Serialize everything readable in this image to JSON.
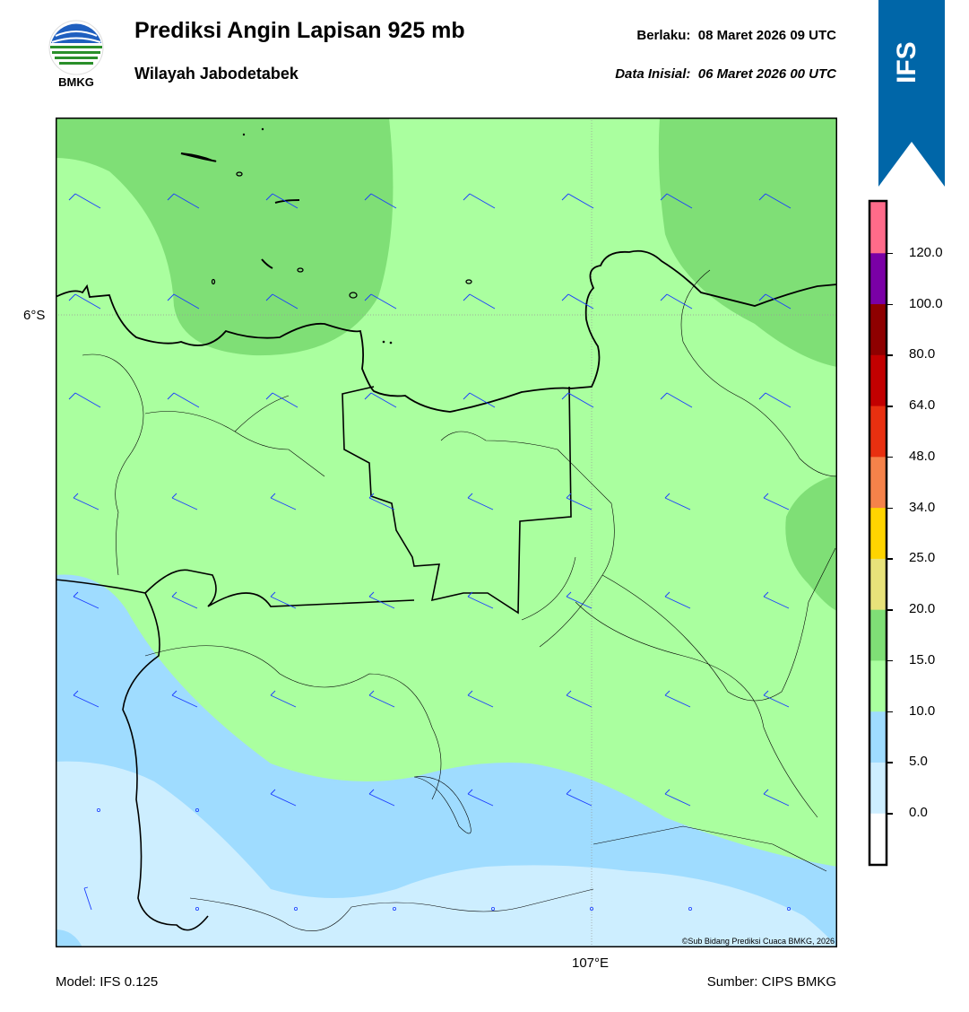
{
  "header": {
    "title": "Prediksi Angin Lapisan 925 mb",
    "subtitle": "Wilayah Jabodetabek",
    "valid_label": "Berlaku:",
    "valid_time": "08 Maret 2026 09 UTC",
    "initial_label": "Data Inisial:",
    "initial_time": "06 Maret 2026 00 UTC"
  },
  "logo": {
    "text": "BMKG"
  },
  "badge": {
    "text": "IFS",
    "color": "#0066a8"
  },
  "map": {
    "lat_label": "6°S",
    "lon_label": "107°E",
    "copyright": "©Sub Bidang Prediksi Cuaca BMKG, 2026",
    "coast_color": "#000000",
    "barb_color": "#1a3cff"
  },
  "footer": {
    "model": "Model: IFS 0.125",
    "source": "Sumber: CIPS BMKG"
  },
  "colorbar": {
    "labels": [
      "0.0",
      "5.0",
      "10.0",
      "15.0",
      "20.0",
      "25.0",
      "34.0",
      "48.0",
      "64.0",
      "80.0",
      "100.0",
      "120.0"
    ],
    "colors": [
      "#ffffff",
      "#cdeeff",
      "#9fdcff",
      "#aaff9f",
      "#7fdf76",
      "#e8e27a",
      "#ffd400",
      "#f5824a",
      "#e83010",
      "#c20000",
      "#8e0000",
      "#7a00a6",
      "#ff6b8a"
    ]
  }
}
